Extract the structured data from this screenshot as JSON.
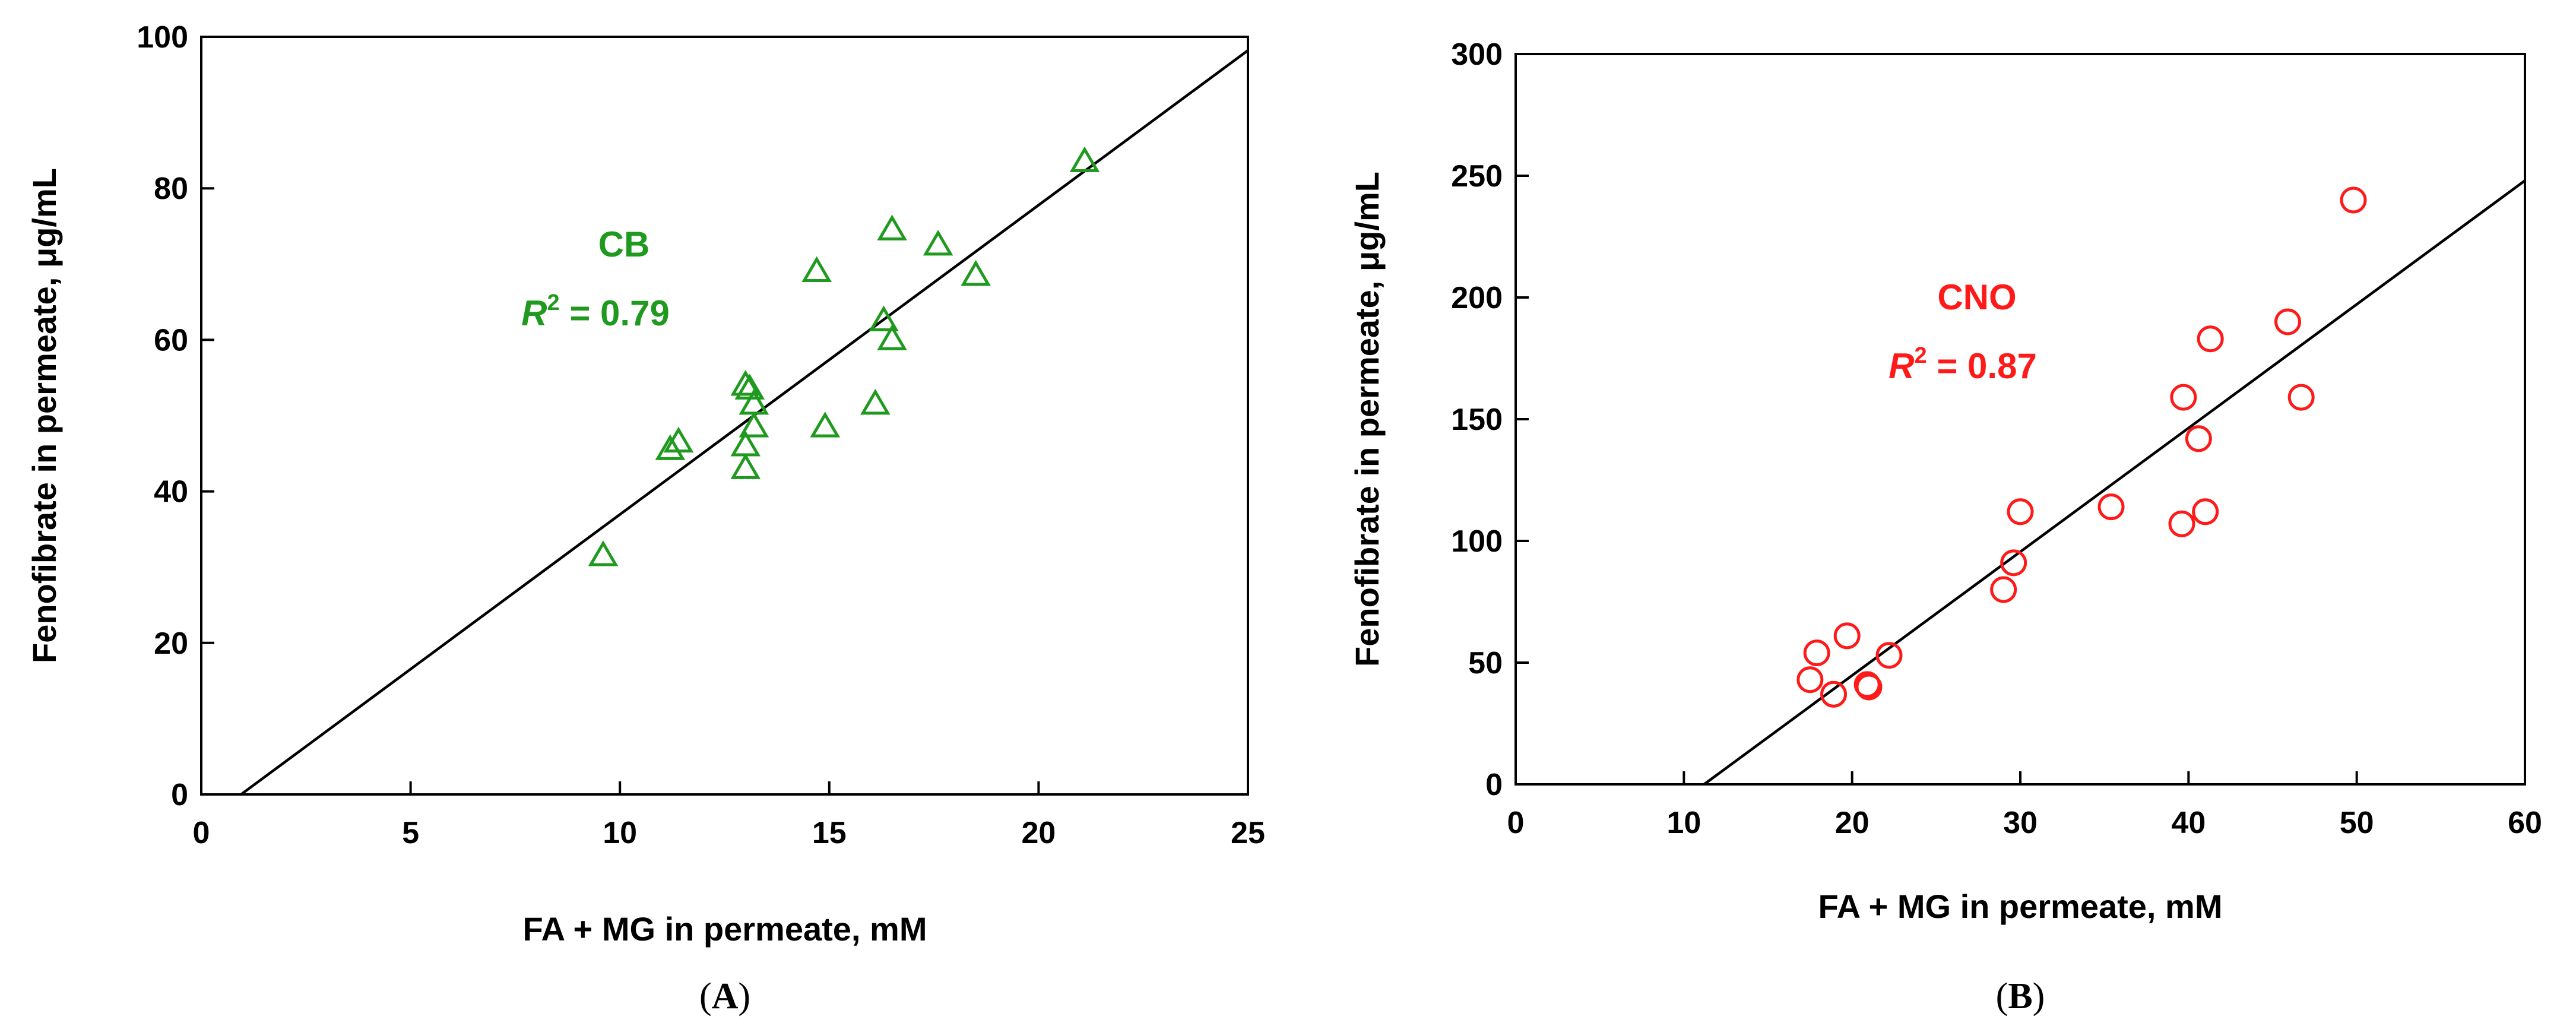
{
  "chart_data": [
    {
      "type": "scatter",
      "panel_label": "A",
      "xlabel": "FA + MG in permeate, mM",
      "ylabel": "Fenofibrate in permeate, μg/mL",
      "xlim": [
        0,
        25
      ],
      "ylim": [
        0,
        100
      ],
      "xticks": [
        0,
        5,
        10,
        15,
        20,
        25
      ],
      "yticks": [
        0,
        20,
        40,
        60,
        80,
        100
      ],
      "marker": "triangle",
      "color": "#1f9a1f",
      "series_name": "CB",
      "r2_prefix": "R",
      "r2_exp": "2",
      "r2_text": " = 0.79",
      "fit_line": [
        [
          0.95,
          0
        ],
        [
          25,
          98.2
        ]
      ],
      "points": [
        [
          9.6,
          31.5
        ],
        [
          11.2,
          45.5
        ],
        [
          11.4,
          46.5
        ],
        [
          13.0,
          43.0
        ],
        [
          13.0,
          46.0
        ],
        [
          13.0,
          54.0
        ],
        [
          13.1,
          53.5
        ],
        [
          13.2,
          51.5
        ],
        [
          13.2,
          48.5
        ],
        [
          14.7,
          69.0
        ],
        [
          14.9,
          48.5
        ],
        [
          16.1,
          51.5
        ],
        [
          16.3,
          62.5
        ],
        [
          16.5,
          60.0
        ],
        [
          16.5,
          74.5
        ],
        [
          17.6,
          72.5
        ],
        [
          18.5,
          68.5
        ],
        [
          21.1,
          83.5
        ]
      ]
    },
    {
      "type": "scatter",
      "panel_label": "B",
      "xlabel": "FA + MG in permeate, mM",
      "ylabel": "Fenofibrate in permeate, μg/mL",
      "xlim": [
        0,
        60
      ],
      "ylim": [
        0,
        300
      ],
      "xticks": [
        0,
        10,
        20,
        30,
        40,
        50,
        60
      ],
      "yticks": [
        0,
        50,
        100,
        150,
        200,
        250,
        300
      ],
      "marker": "circle",
      "color": "#ff1a1a",
      "series_name": "CNO",
      "r2_prefix": "R",
      "r2_exp": "2",
      "r2_text": " = 0.87",
      "fit_line": [
        [
          11.2,
          0
        ],
        [
          60,
          248
        ]
      ],
      "points": [
        [
          17.5,
          43
        ],
        [
          17.9,
          54
        ],
        [
          18.9,
          37
        ],
        [
          19.7,
          61
        ],
        [
          20.9,
          41
        ],
        [
          21.0,
          40
        ],
        [
          22.2,
          53
        ],
        [
          29.0,
          80
        ],
        [
          29.6,
          91
        ],
        [
          30.0,
          112
        ],
        [
          35.4,
          114
        ],
        [
          39.6,
          107
        ],
        [
          39.7,
          159
        ],
        [
          40.6,
          142
        ],
        [
          41.0,
          112
        ],
        [
          41.3,
          183
        ],
        [
          45.9,
          190
        ],
        [
          46.7,
          159
        ],
        [
          49.8,
          240
        ]
      ]
    }
  ]
}
